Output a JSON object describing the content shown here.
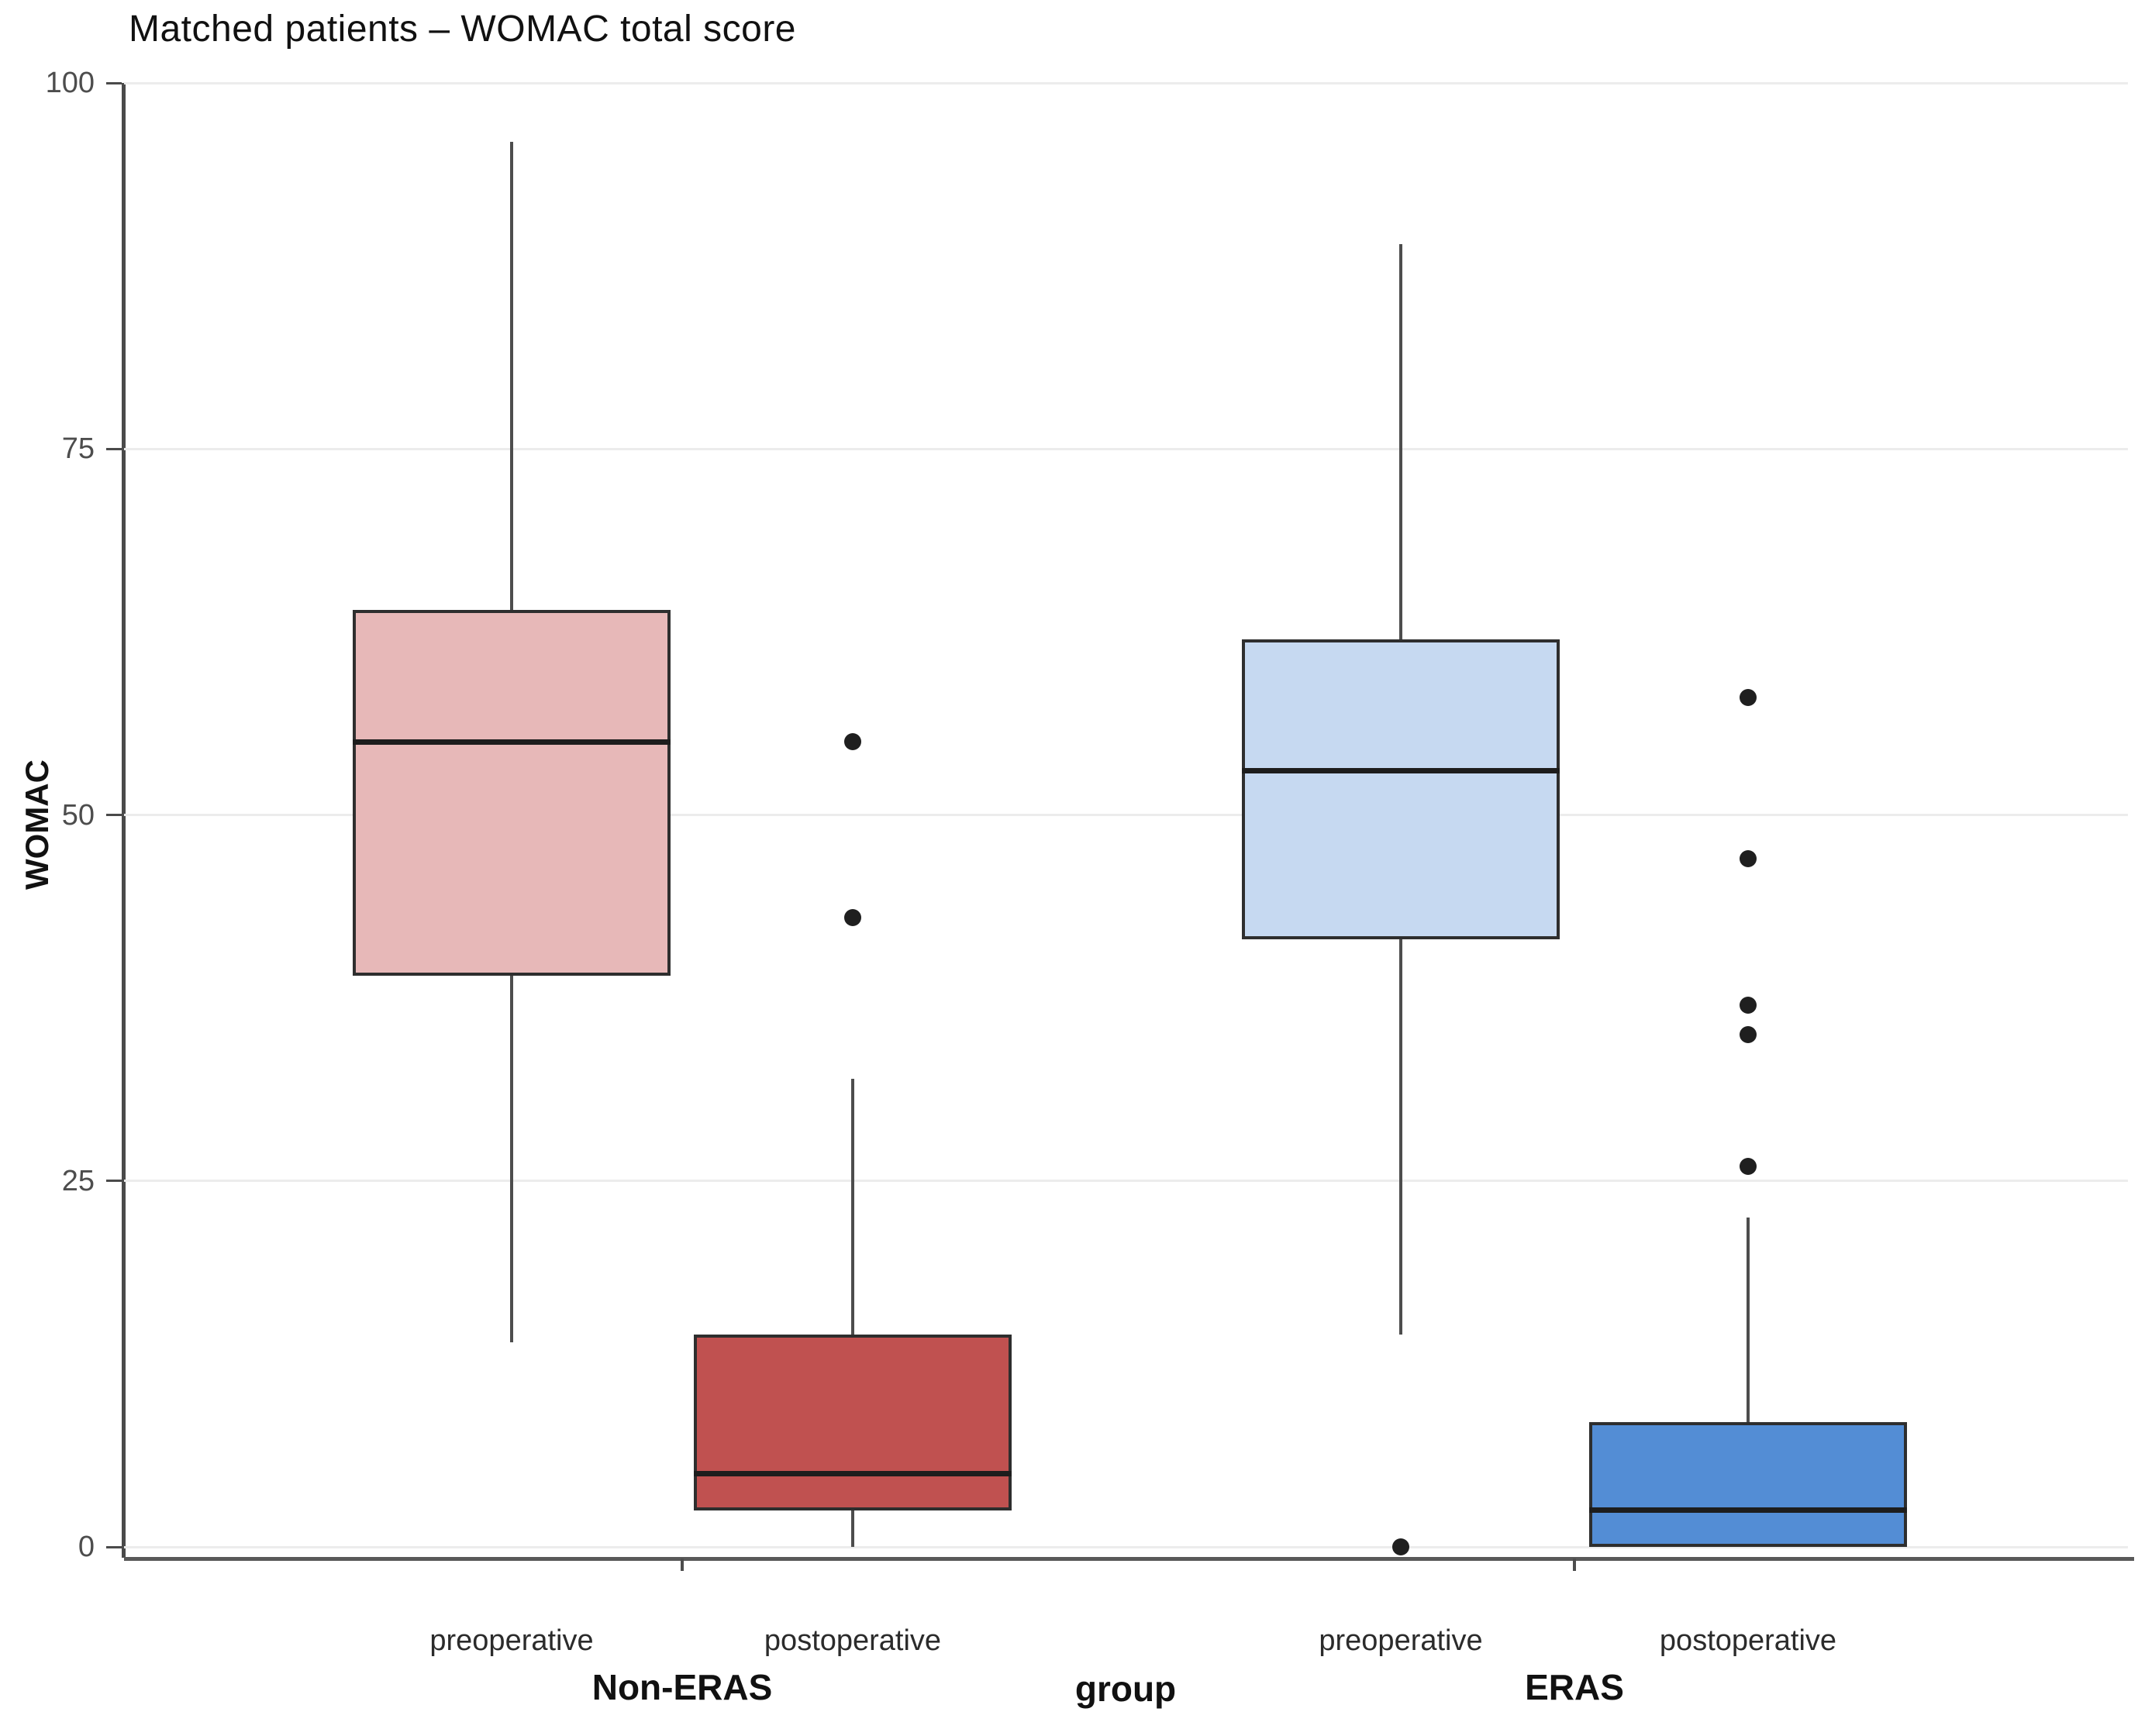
{
  "title": "Matched patients – WOMAC total score",
  "axes": {
    "y_label": "WOMAC",
    "x_label": "group",
    "y_ticks": [
      0,
      25,
      50,
      75,
      100
    ]
  },
  "groups": {
    "left": "Non-ERAS",
    "right": "ERAS"
  },
  "colors": {
    "non_eras_preop_fill": "#e7b8b8",
    "non_eras_postop_fill": "#c05150",
    "eras_preop_fill": "#c6d9f1",
    "eras_postop_fill": "#538dd5",
    "box_border": "#2e2e2e",
    "median_line": "#1d1d1d",
    "whisker": "#4d4d4d",
    "gridline": "#ececec",
    "axis_line": "#595959",
    "tick_label": "#4d4d4d"
  },
  "chart_data": {
    "type": "boxplot",
    "title": "Matched patients – WOMAC total score",
    "xlabel": "group",
    "ylabel": "WOMAC",
    "ylim": [
      0,
      100
    ],
    "y_ticks": [
      0,
      25,
      50,
      75,
      100
    ],
    "grid": true,
    "legend": "none",
    "groups": [
      "Non-ERAS",
      "ERAS"
    ],
    "categories": [
      "preoperative",
      "postoperative",
      "preoperative",
      "postoperative"
    ],
    "series": [
      {
        "group": "Non-ERAS",
        "timepoint": "preoperative",
        "fill": "#e7b8b8",
        "min": 14,
        "q1": 39,
        "median": 55,
        "q3": 64,
        "max": 96,
        "outliers": []
      },
      {
        "group": "Non-ERAS",
        "timepoint": "postoperative",
        "fill": "#c05150",
        "min": 0,
        "q1": 2.5,
        "median": 5,
        "q3": 14.5,
        "max": 32,
        "outliers": [
          55,
          43
        ]
      },
      {
        "group": "ERAS",
        "timepoint": "preoperative",
        "fill": "#c6d9f1",
        "min": 14.5,
        "q1": 41.5,
        "median": 53,
        "q3": 62,
        "max": 89,
        "outliers": [
          0
        ]
      },
      {
        "group": "ERAS",
        "timepoint": "postoperative",
        "fill": "#538dd5",
        "min": 0,
        "q1": 0,
        "median": 2.5,
        "q3": 8.5,
        "max": 22.5,
        "outliers": [
          58,
          47,
          37,
          35,
          26
        ]
      }
    ]
  }
}
